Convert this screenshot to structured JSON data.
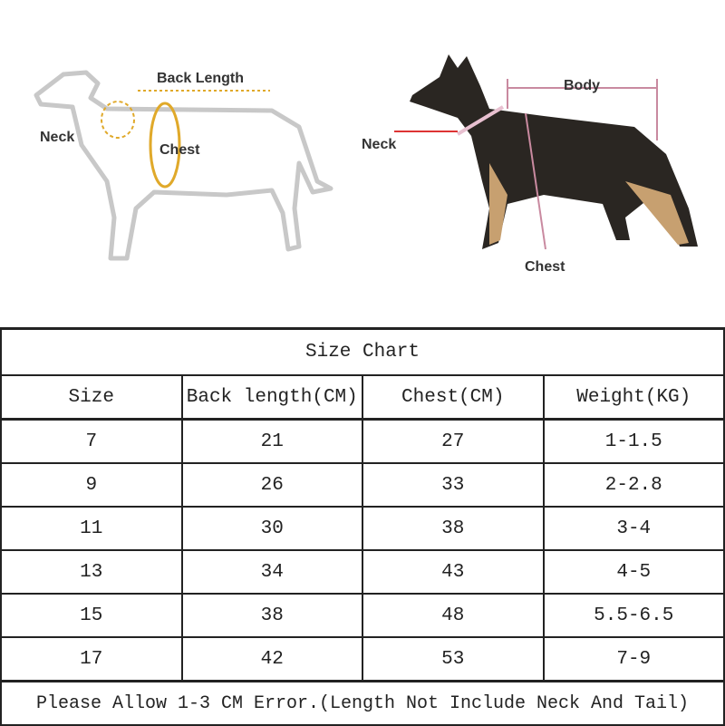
{
  "illustration_left": {
    "back_length": "Back Length",
    "neck": "Neck",
    "chest": "Chest"
  },
  "illustration_right": {
    "body": "Body",
    "neck": "Neck",
    "chest": "Chest"
  },
  "colors": {
    "accent_left": "#e0a92a",
    "measure_right": "#c98aa0",
    "arrow_red": "#d33"
  },
  "table": {
    "title": "Size Chart",
    "headers": [
      "Size",
      "Back length(CM)",
      "Chest(CM)",
      "Weight(KG)"
    ],
    "rows": [
      [
        "7",
        "21",
        "27",
        "1-1.5"
      ],
      [
        "9",
        "26",
        "33",
        "2-2.8"
      ],
      [
        "11",
        "30",
        "38",
        "3-4"
      ],
      [
        "13",
        "34",
        "43",
        "4-5"
      ],
      [
        "15",
        "38",
        "48",
        "5.5-6.5"
      ],
      [
        "17",
        "42",
        "53",
        "7-9"
      ]
    ],
    "footer": "Please Allow 1-3 CM Error.(Length Not Include Neck And Tail)"
  }
}
